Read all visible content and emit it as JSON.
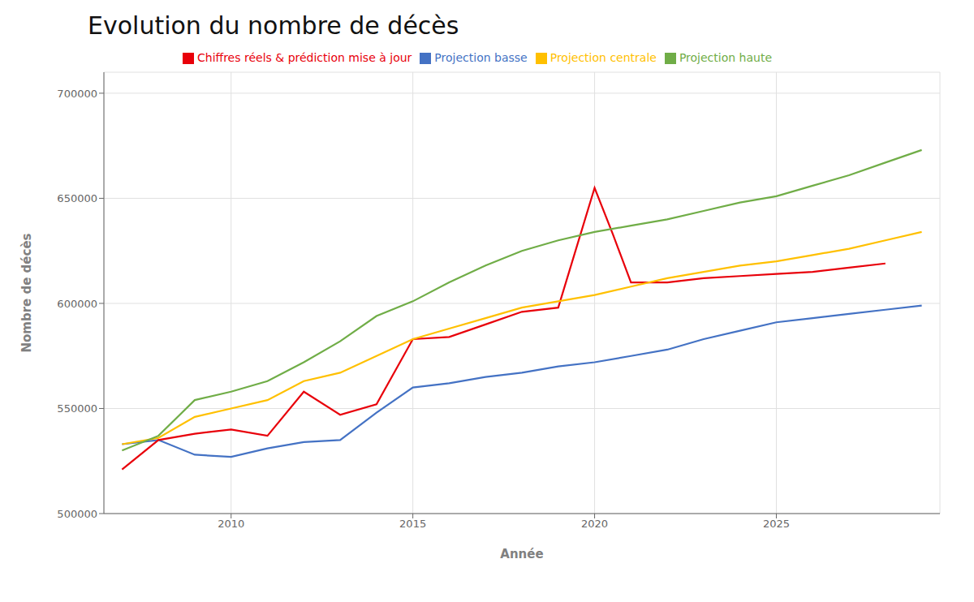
{
  "chart_data": {
    "type": "line",
    "title": "Evolution du nombre de décès",
    "x_label": "Année",
    "y_label": "Nombre de décès",
    "xlim": [
      2006.5,
      2029.5
    ],
    "ylim": [
      500000,
      710000
    ],
    "xticks": [
      2010,
      2015,
      2020,
      2025
    ],
    "yticks": [
      500000,
      550000,
      600000,
      650000,
      700000
    ],
    "grid": true,
    "legend": "top",
    "series": [
      {
        "name": "Projection basse",
        "color": "#4472C4",
        "x": [
          2007,
          2008,
          2009,
          2010,
          2011,
          2012,
          2013,
          2014,
          2015,
          2016,
          2017,
          2018,
          2019,
          2020,
          2021,
          2022,
          2023,
          2024,
          2025,
          2026,
          2027,
          2028,
          2029
        ],
        "values": [
          533000,
          535000,
          528000,
          527000,
          531000,
          534000,
          535000,
          548000,
          560000,
          562000,
          565000,
          567000,
          570000,
          572000,
          575000,
          578000,
          583000,
          587000,
          591000,
          593000,
          595000,
          597000,
          599000
        ]
      },
      {
        "name": "Chiffres réels & prédiction mise à jour",
        "color": "#E8000A",
        "x": [
          2007,
          2008,
          2009,
          2010,
          2011,
          2012,
          2013,
          2014,
          2015,
          2016,
          2017,
          2018,
          2019,
          2020,
          2020.5,
          2021,
          2022,
          2023,
          2024,
          2025,
          2026,
          2027,
          2028
        ],
        "values": [
          521000,
          535000,
          538000,
          540000,
          537000,
          558000,
          547000,
          552000,
          583000,
          584000,
          590000,
          596000,
          598000,
          655000,
          633000,
          610000,
          610000,
          612000,
          613000,
          614000,
          615000,
          617000,
          619000
        ]
      },
      {
        "name": "Projection centrale",
        "color": "#FFC000",
        "x": [
          2007,
          2008,
          2009,
          2010,
          2011,
          2012,
          2013,
          2014,
          2015,
          2016,
          2017,
          2018,
          2019,
          2020,
          2021,
          2022,
          2023,
          2024,
          2025,
          2026,
          2027,
          2028,
          2029
        ],
        "values": [
          533000,
          536000,
          546000,
          550000,
          554000,
          563000,
          567000,
          575000,
          583000,
          588000,
          593000,
          598000,
          601000,
          604000,
          608000,
          612000,
          615000,
          618000,
          620000,
          623000,
          626000,
          630000,
          634000
        ]
      },
      {
        "name": "Projection haute",
        "color": "#70AD47",
        "x": [
          2007,
          2008,
          2009,
          2010,
          2011,
          2012,
          2013,
          2014,
          2015,
          2016,
          2017,
          2018,
          2019,
          2020,
          2021,
          2022,
          2023,
          2024,
          2025,
          2026,
          2027,
          2028,
          2029
        ],
        "values": [
          530000,
          537000,
          554000,
          558000,
          563000,
          572000,
          582000,
          594000,
          601000,
          610000,
          618000,
          625000,
          630000,
          634000,
          637000,
          640000,
          644000,
          648000,
          651000,
          656000,
          661000,
          667000,
          673000
        ]
      }
    ]
  }
}
